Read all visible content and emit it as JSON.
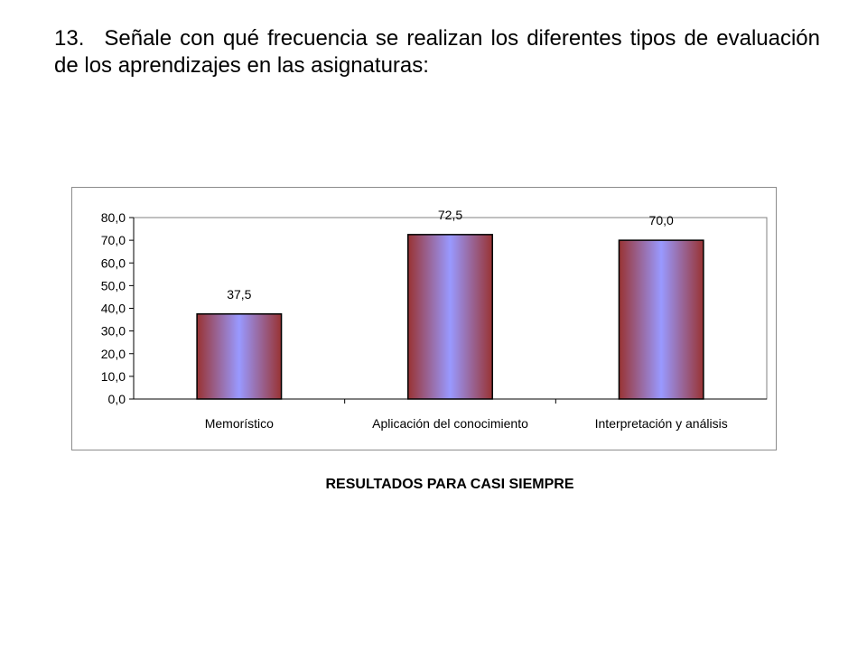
{
  "question": {
    "number": "13.",
    "text": "Señale con qué frecuencia se realizan los diferentes tipos de evaluación de los aprendizajes en las asignaturas:"
  },
  "caption": "RESULTADOS PARA CASI SIEMPRE",
  "chart_data": {
    "type": "bar",
    "categories": [
      "Memorístico",
      "Aplicación del conocimiento",
      "Interpretación y análisis"
    ],
    "values": [
      37.5,
      72.5,
      70.0
    ],
    "value_labels": [
      "37,5",
      "72,5",
      "70,0"
    ],
    "yticks": [
      "0,0",
      "10,0",
      "20,0",
      "30,0",
      "40,0",
      "50,0",
      "60,0",
      "70,0",
      "80,0"
    ],
    "ylim": [
      0,
      80
    ],
    "ystep": 10,
    "title": "",
    "xlabel": "",
    "ylabel": "",
    "grid": false,
    "legend": "none",
    "colors": {
      "bar_center": "#9999ff",
      "bar_edge": "#993333",
      "bar_outline": "#000000",
      "plot_border": "#808080",
      "frame_border": "#8c8c8c"
    }
  }
}
